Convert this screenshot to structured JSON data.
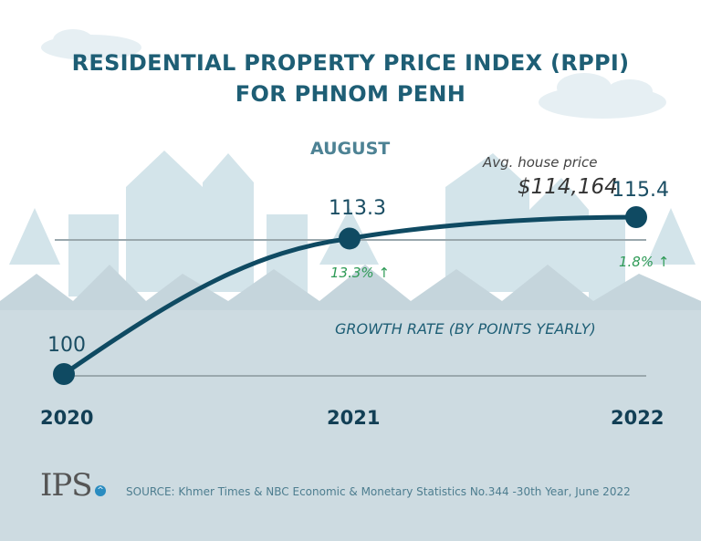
{
  "chart_data": {
    "type": "line",
    "title": "RESIDENTIAL PROPERTY PRICE INDEX (RPPI) FOR PHNOM PENH",
    "title_lines": [
      "RESIDENTIAL PROPERTY PRICE INDEX (RPPI)",
      "FOR PHNOM PENH"
    ],
    "subtitle": "AUGUST",
    "categories": [
      "2020",
      "2021",
      "2022"
    ],
    "values": [
      100,
      113.3,
      115.4
    ],
    "value_labels": [
      "100",
      "113.3",
      "115.4"
    ],
    "growth_rates": [
      "13.3%",
      "1.8%"
    ],
    "growth_arrow": "arrow-up-icon",
    "growth_note": "GROWTH RATE (BY POINTS YEARLY)",
    "annotation": {
      "label": "Avg. house price",
      "value": "$114,164"
    },
    "ylim": [
      100,
      115.4
    ],
    "grid": true,
    "colors": {
      "line": "#0f4a62",
      "title": "#1e5e75",
      "growth": "#2e9a56",
      "ground": "#cddbe1",
      "skyline": "#d3e4ea"
    }
  },
  "footer": {
    "logo": "IPS",
    "source": "SOURCE: Khmer Times & NBC Economic & Monetary Statistics No.344 -30th Year, June 2022"
  }
}
